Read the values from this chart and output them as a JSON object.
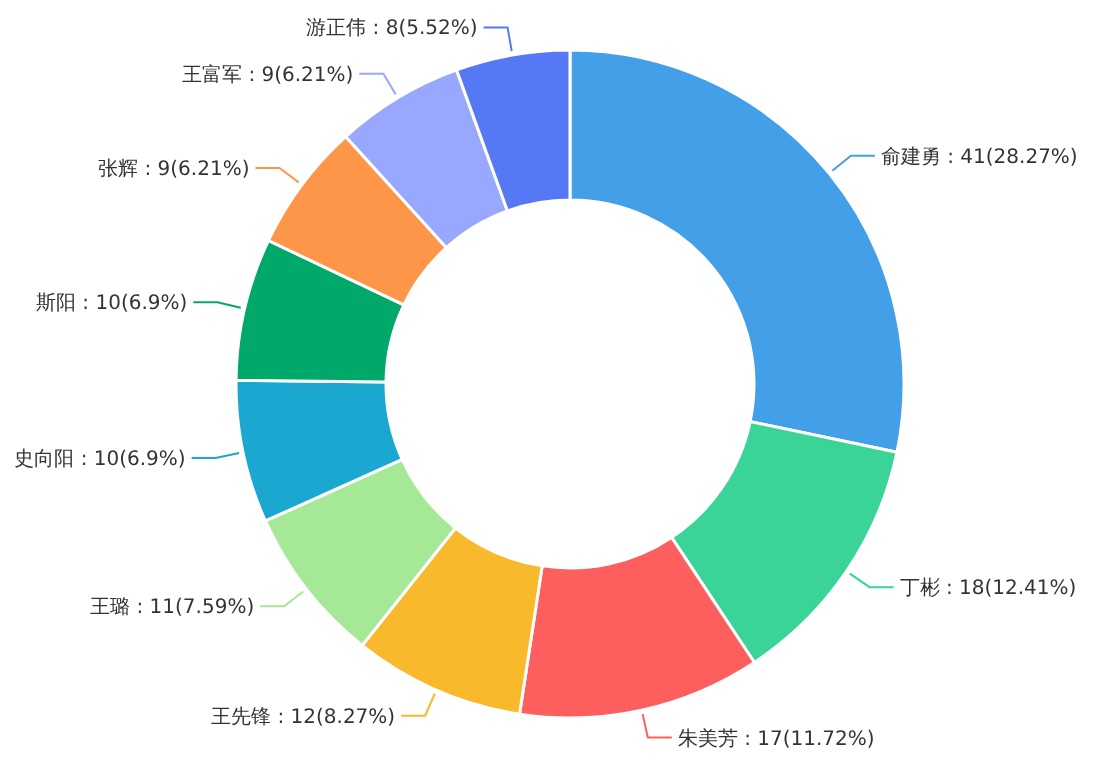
{
  "chart_data": {
    "type": "donut",
    "categories": [
      "俞建勇",
      "丁彬",
      "朱美芳",
      "王先锋",
      "王璐",
      "史向阳",
      "斯阳",
      "张辉",
      "王富军",
      "游正伟"
    ],
    "values": [
      41,
      18,
      17,
      12,
      11,
      10,
      10,
      9,
      9,
      8
    ],
    "value_labels": [
      "41(28.27%)",
      "18(12.41%)",
      "17(11.72%)",
      "12(8.27%)",
      "11(7.59%)",
      "10(6.9%)",
      "10(6.9%)",
      "9(6.21%)",
      "9(6.21%)",
      "8(5.52%)"
    ],
    "colors": [
      "#43a0e8",
      "#3bd498",
      "#fd5e5e",
      "#f8b92c",
      "#a5e895",
      "#1aa8d0",
      "#00a869",
      "#fe964a",
      "#98a8fe",
      "#5578f5"
    ],
    "legend": false
  }
}
